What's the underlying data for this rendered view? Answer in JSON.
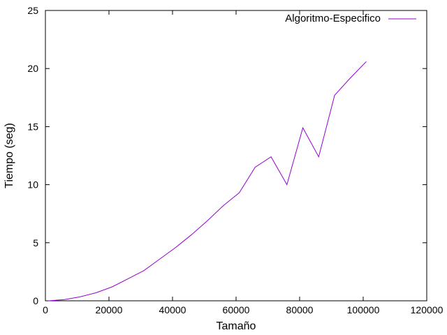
{
  "chart_data": {
    "type": "line",
    "title": "",
    "xlabel": "Tamaño",
    "ylabel": "Tiempo (seg)",
    "xlim": [
      0,
      120000
    ],
    "ylim": [
      0,
      25
    ],
    "xticks": [
      0,
      20000,
      40000,
      60000,
      80000,
      100000,
      120000
    ],
    "yticks": [
      0,
      5,
      10,
      15,
      20,
      25
    ],
    "grid": false,
    "legend_position": "top-right",
    "series": [
      {
        "name": "Algoritmo-Especifico",
        "color": "#9400d3",
        "x": [
          1000,
          6000,
          11000,
          16000,
          21000,
          26000,
          31000,
          36000,
          41000,
          46000,
          51000,
          56000,
          61000,
          66000,
          71000,
          76000,
          81000,
          86000,
          91000,
          96000,
          101000
        ],
        "y": [
          0.0,
          0.1,
          0.35,
          0.7,
          1.2,
          1.9,
          2.6,
          3.6,
          4.6,
          5.7,
          6.9,
          8.2,
          9.3,
          11.5,
          12.4,
          10.0,
          14.9,
          12.4,
          17.7,
          19.2,
          20.6
        ]
      }
    ]
  }
}
